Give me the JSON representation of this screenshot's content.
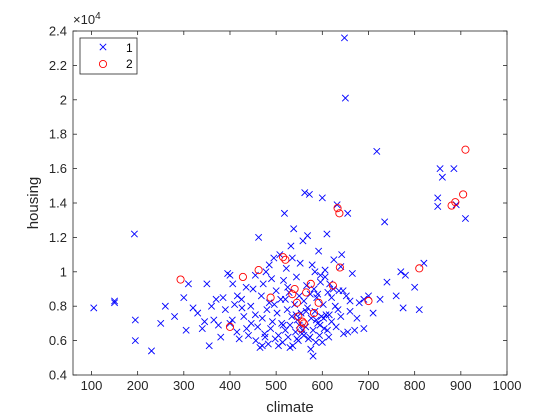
{
  "chart_data": {
    "type": "scatter",
    "xlabel": "climate",
    "ylabel": "housing",
    "xlim": [
      60,
      1000
    ],
    "ylim": [
      4000,
      24000
    ],
    "y_exponent_label": "10^4",
    "x_ticks": [
      100,
      200,
      300,
      400,
      500,
      600,
      700,
      800,
      900,
      1000
    ],
    "x_tick_labels": [
      "100",
      "200",
      "300",
      "400",
      "500",
      "600",
      "700",
      "800",
      "900",
      "1000"
    ],
    "y_ticks": [
      4000,
      6000,
      8000,
      10000,
      12000,
      14000,
      16000,
      18000,
      20000,
      22000,
      24000
    ],
    "y_tick_labels": [
      "0.4",
      "0.6",
      "0.8",
      "1",
      "1.2",
      "1.4",
      "1.6",
      "1.8",
      "2",
      "2.2",
      "2.4"
    ],
    "grid": false,
    "legend_position": "top-left",
    "series": [
      {
        "name": "1",
        "marker": "x",
        "color": "#0000ff",
        "points": [
          [
            105,
            7900
          ],
          [
            150,
            8300
          ],
          [
            150,
            8200
          ],
          [
            193,
            12200
          ],
          [
            195,
            6000
          ],
          [
            195,
            7200
          ],
          [
            230,
            5400
          ],
          [
            250,
            7000
          ],
          [
            260,
            8000
          ],
          [
            280,
            7400
          ],
          [
            300,
            8500
          ],
          [
            305,
            6600
          ],
          [
            310,
            9300
          ],
          [
            320,
            7900
          ],
          [
            330,
            7600
          ],
          [
            340,
            6700
          ],
          [
            345,
            7100
          ],
          [
            350,
            9300
          ],
          [
            355,
            5700
          ],
          [
            360,
            8000
          ],
          [
            365,
            7200
          ],
          [
            370,
            8400
          ],
          [
            375,
            6900
          ],
          [
            380,
            6200
          ],
          [
            385,
            8500
          ],
          [
            390,
            7800
          ],
          [
            395,
            9900
          ],
          [
            400,
            7000
          ],
          [
            400,
            9800
          ],
          [
            405,
            7200
          ],
          [
            410,
            8100
          ],
          [
            415,
            6500
          ],
          [
            420,
            6100
          ],
          [
            425,
            8400
          ],
          [
            430,
            7400
          ],
          [
            435,
            9100
          ],
          [
            440,
            6300
          ],
          [
            445,
            8000
          ],
          [
            450,
            9000
          ],
          [
            455,
            7500
          ],
          [
            460,
            6800
          ],
          [
            462,
            12000
          ],
          [
            465,
            5600
          ],
          [
            468,
            8600
          ],
          [
            470,
            7300
          ],
          [
            472,
            9300
          ],
          [
            475,
            6400
          ],
          [
            478,
            10000
          ],
          [
            480,
            7800
          ],
          [
            483,
            5800
          ],
          [
            485,
            8200
          ],
          [
            488,
            6700
          ],
          [
            490,
            9600
          ],
          [
            492,
            7100
          ],
          [
            495,
            10800
          ],
          [
            498,
            6100
          ],
          [
            500,
            8900
          ],
          [
            502,
            7600
          ],
          [
            505,
            6300
          ],
          [
            508,
            11000
          ],
          [
            510,
            8400
          ],
          [
            512,
            7000
          ],
          [
            514,
            5900
          ],
          [
            516,
            9500
          ],
          [
            518,
            13400
          ],
          [
            520,
            6600
          ],
          [
            522,
            10200
          ],
          [
            524,
            7800
          ],
          [
            526,
            6200
          ],
          [
            528,
            8800
          ],
          [
            530,
            6900
          ],
          [
            532,
            11500
          ],
          [
            534,
            7400
          ],
          [
            536,
            5700
          ],
          [
            538,
            12500
          ],
          [
            540,
            8100
          ],
          [
            542,
            6500
          ],
          [
            544,
            9700
          ],
          [
            546,
            7200
          ],
          [
            548,
            6000
          ],
          [
            550,
            8600
          ],
          [
            552,
            10500
          ],
          [
            554,
            7600
          ],
          [
            556,
            6400
          ],
          [
            558,
            11800
          ],
          [
            560,
            8300
          ],
          [
            562,
            14600
          ],
          [
            564,
            6800
          ],
          [
            566,
            9200
          ],
          [
            568,
            7900
          ],
          [
            570,
            6100
          ],
          [
            572,
            14500
          ],
          [
            574,
            8700
          ],
          [
            576,
            7300
          ],
          [
            578,
            10400
          ],
          [
            580,
            6600
          ],
          [
            582,
            9000
          ],
          [
            584,
            7700
          ],
          [
            586,
            5900
          ],
          [
            588,
            8500
          ],
          [
            590,
            7000
          ],
          [
            592,
            11200
          ],
          [
            594,
            6300
          ],
          [
            596,
            9800
          ],
          [
            598,
            7400
          ],
          [
            600,
            14300
          ],
          [
            602,
            8100
          ],
          [
            604,
            6700
          ],
          [
            606,
            10100
          ],
          [
            608,
            7500
          ],
          [
            610,
            12200
          ],
          [
            612,
            8800
          ],
          [
            614,
            6200
          ],
          [
            616,
            9300
          ],
          [
            620,
            7100
          ],
          [
            625,
            10700
          ],
          [
            628,
            8000
          ],
          [
            630,
            6800
          ],
          [
            632,
            13900
          ],
          [
            636,
            8900
          ],
          [
            640,
            7400
          ],
          [
            642,
            11000
          ],
          [
            646,
            6400
          ],
          [
            648,
            23600
          ],
          [
            650,
            20100
          ],
          [
            652,
            8600
          ],
          [
            655,
            13400
          ],
          [
            660,
            7700
          ],
          [
            665,
            9900
          ],
          [
            670,
            6600
          ],
          [
            680,
            8200
          ],
          [
            690,
            6700
          ],
          [
            700,
            8600
          ],
          [
            710,
            7600
          ],
          [
            718,
            17000
          ],
          [
            725,
            8400
          ],
          [
            735,
            12900
          ],
          [
            740,
            9400
          ],
          [
            760,
            8600
          ],
          [
            770,
            10000
          ],
          [
            775,
            7900
          ],
          [
            780,
            9800
          ],
          [
            800,
            9100
          ],
          [
            810,
            7800
          ],
          [
            820,
            10500
          ],
          [
            850,
            14300
          ],
          [
            850,
            13800
          ],
          [
            855,
            16000
          ],
          [
            860,
            15500
          ],
          [
            885,
            16000
          ],
          [
            890,
            13900
          ],
          [
            910,
            13100
          ],
          [
            470,
            5700
          ],
          [
            530,
            5600
          ],
          [
            545,
            6100
          ],
          [
            575,
            5500
          ],
          [
            600,
            5900
          ],
          [
            580,
            5100
          ],
          [
            560,
            6300
          ],
          [
            620,
            8500
          ],
          [
            455,
            9800
          ],
          [
            640,
            10300
          ],
          [
            690,
            8400
          ],
          [
            525,
            9100
          ],
          [
            505,
            5700
          ],
          [
            485,
            10400
          ],
          [
            515,
            6900
          ],
          [
            535,
            10800
          ],
          [
            565,
            7700
          ],
          [
            595,
            6900
          ],
          [
            615,
            7500
          ],
          [
            645,
            8900
          ],
          [
            660,
            8300
          ],
          [
            675,
            7300
          ],
          [
            655,
            6500
          ],
          [
            590,
            8700
          ],
          [
            550,
            6900
          ],
          [
            520,
            8400
          ],
          [
            496,
            8100
          ],
          [
            476,
            6200
          ],
          [
            446,
            7000
          ],
          [
            426,
            7900
          ],
          [
            416,
            8600
          ],
          [
            406,
            9300
          ],
          [
            436,
            6700
          ],
          [
            456,
            6000
          ],
          [
            596,
            9400
          ],
          [
            606,
            9700
          ],
          [
            624,
            9000
          ],
          [
            634,
            7800
          ],
          [
            584,
            10000
          ],
          [
            568,
            12100
          ],
          [
            543,
            7500
          ],
          [
            557,
            6600
          ],
          [
            573,
            6200
          ],
          [
            587,
            7200
          ],
          [
            603,
            7300
          ],
          [
            611,
            6600
          ]
        ]
      },
      {
        "name": "2",
        "marker": "o",
        "color": "#ff0000",
        "points": [
          [
            293,
            9550
          ],
          [
            400,
            6800
          ],
          [
            428,
            9700
          ],
          [
            462,
            10100
          ],
          [
            488,
            8500
          ],
          [
            515,
            10850
          ],
          [
            520,
            10700
          ],
          [
            535,
            8700
          ],
          [
            540,
            9000
          ],
          [
            545,
            8200
          ],
          [
            548,
            7400
          ],
          [
            553,
            6700
          ],
          [
            557,
            7100
          ],
          [
            560,
            7000
          ],
          [
            565,
            8800
          ],
          [
            575,
            9300
          ],
          [
            582,
            7600
          ],
          [
            592,
            8200
          ],
          [
            623,
            9200
          ],
          [
            633,
            13700
          ],
          [
            637,
            13400
          ],
          [
            638,
            10250
          ],
          [
            700,
            8300
          ],
          [
            810,
            10200
          ],
          [
            880,
            13850
          ],
          [
            888,
            14050
          ],
          [
            905,
            14500
          ],
          [
            910,
            17100
          ]
        ]
      }
    ]
  },
  "colors": {
    "axis": "#262626",
    "series1": "#0000ff",
    "series2": "#ff0000"
  }
}
